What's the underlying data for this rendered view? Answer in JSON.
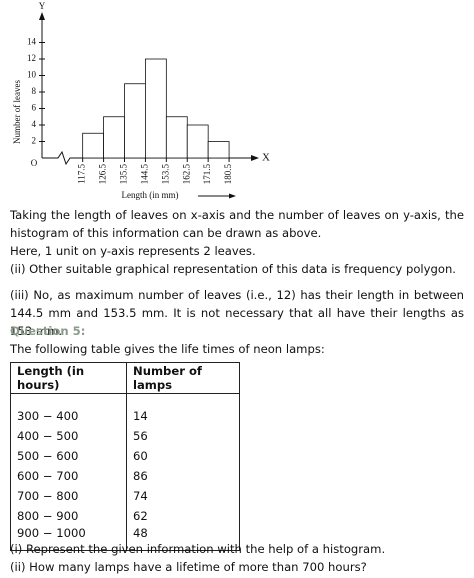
{
  "chart_data": {
    "type": "histogram",
    "bins": [
      117.5,
      126.5,
      135.5,
      144.5,
      153.5,
      162.5,
      171.5,
      180.5
    ],
    "values": [
      3,
      5,
      9,
      12,
      5,
      4,
      2
    ],
    "color": "#ffffff",
    "xlim": [
      100,
      189.5
    ],
    "ylim": [
      0,
      16
    ],
    "yticks": [
      2,
      4,
      6,
      8,
      10,
      12,
      14
    ],
    "x_label": "Length (in mm)",
    "y_label": "Number of leaves",
    "x_axis_name": "X",
    "y_axis_name": "Y",
    "origin_label": "O",
    "grid": false
  },
  "document": {
    "paragraphs": [
      "Taking the length of leaves on x-axis and the number of leaves on y-axis, the histogram of this information can be drawn as above.",
      "Here, 1 unit on y-axis represents 2 leaves.",
      "(ii) Other suitable graphical representation of this data is frequency polygon.",
      "(iii) No, as maximum number of leaves (i.e., 12) has their length in between 144.5 mm and 153.5 mm. It is not necessary that all have their lengths as 153 mm."
    ],
    "question": "Question 5:",
    "intro": "The following table gives the life times of neon lamps:",
    "table": {
      "header": [
        "Length (in hours)",
        "Number of lamps"
      ],
      "rows": [
        [
          "300 − 400",
          14
        ],
        [
          "400 − 500",
          56
        ],
        [
          "500 − 600",
          60
        ],
        [
          "600 − 700",
          86
        ],
        [
          "700 − 800",
          74
        ],
        [
          "800 − 900",
          62
        ],
        [
          "900 − 1000",
          48
        ]
      ]
    },
    "parts": [
      "(i) Represent the given information with the help of a histogram.",
      "(ii) How many lamps have a lifetime of more than 700 hours?"
    ]
  }
}
